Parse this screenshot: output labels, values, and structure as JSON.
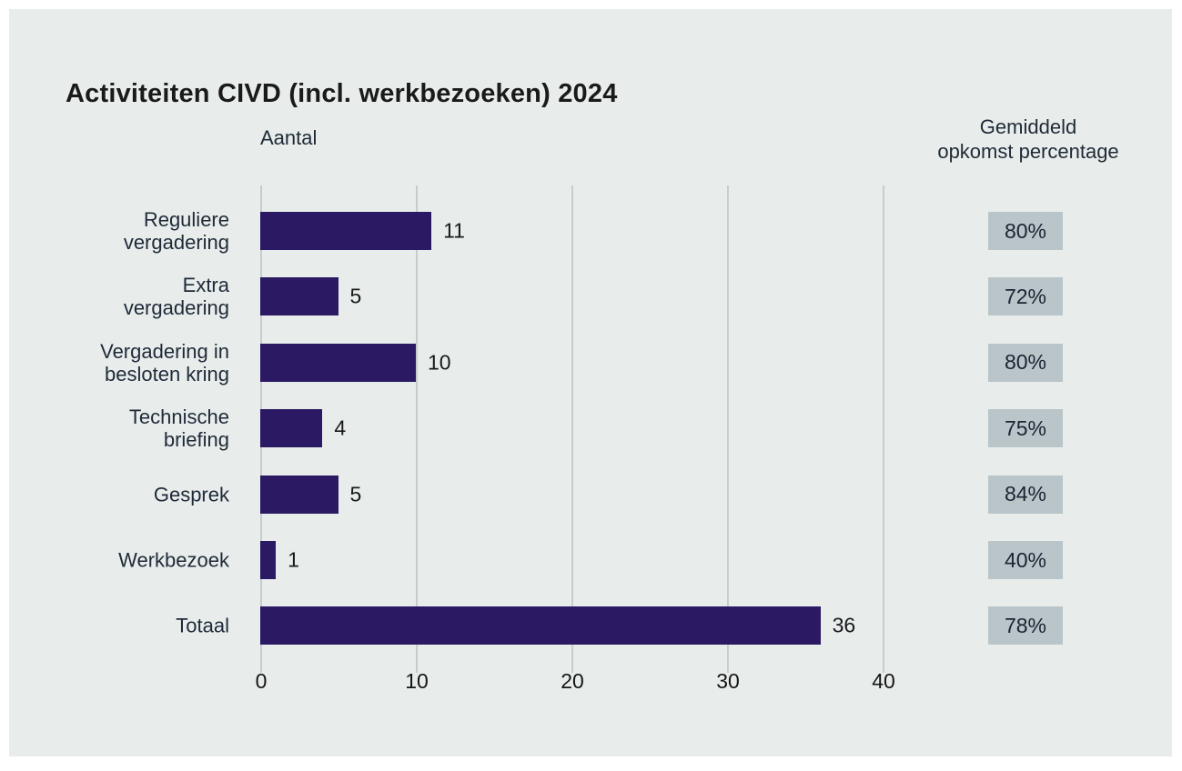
{
  "page": {
    "background": "#ffffff",
    "panel_background": "#e8edec"
  },
  "title": "Activiteiten CIVD (incl. werkbezoeken) 2024",
  "columns": {
    "left_header": "Aantal",
    "right_header": "Gemiddeld\nopkomst percentage"
  },
  "chart_data": {
    "type": "bar",
    "orientation": "horizontal",
    "title": "Activiteiten CIVD (incl. werkbezoeken) 2024",
    "xlabel": "Aantal",
    "categories": [
      "Reguliere\nvergadering",
      "Extra\nvergadering",
      "Vergadering in\nbesloten kring",
      "Technische\nbriefing",
      "Gesprek",
      "Werkbezoek",
      "Totaal"
    ],
    "values": [
      11,
      5,
      10,
      4,
      5,
      1,
      36
    ],
    "value_labels": [
      "11",
      "5",
      "10",
      "4",
      "5",
      "1",
      "36"
    ],
    "attendance_header": "Gemiddeld opkomst percentage",
    "attendance_percentages": [
      "80%",
      "72%",
      "80%",
      "75%",
      "84%",
      "40%",
      "78%"
    ],
    "xticks": [
      0,
      10,
      20,
      30,
      40
    ],
    "xlim": [
      0,
      40
    ],
    "grid": true,
    "bar_color": "#2b1a63",
    "badge_color": "#b9c5c8"
  }
}
